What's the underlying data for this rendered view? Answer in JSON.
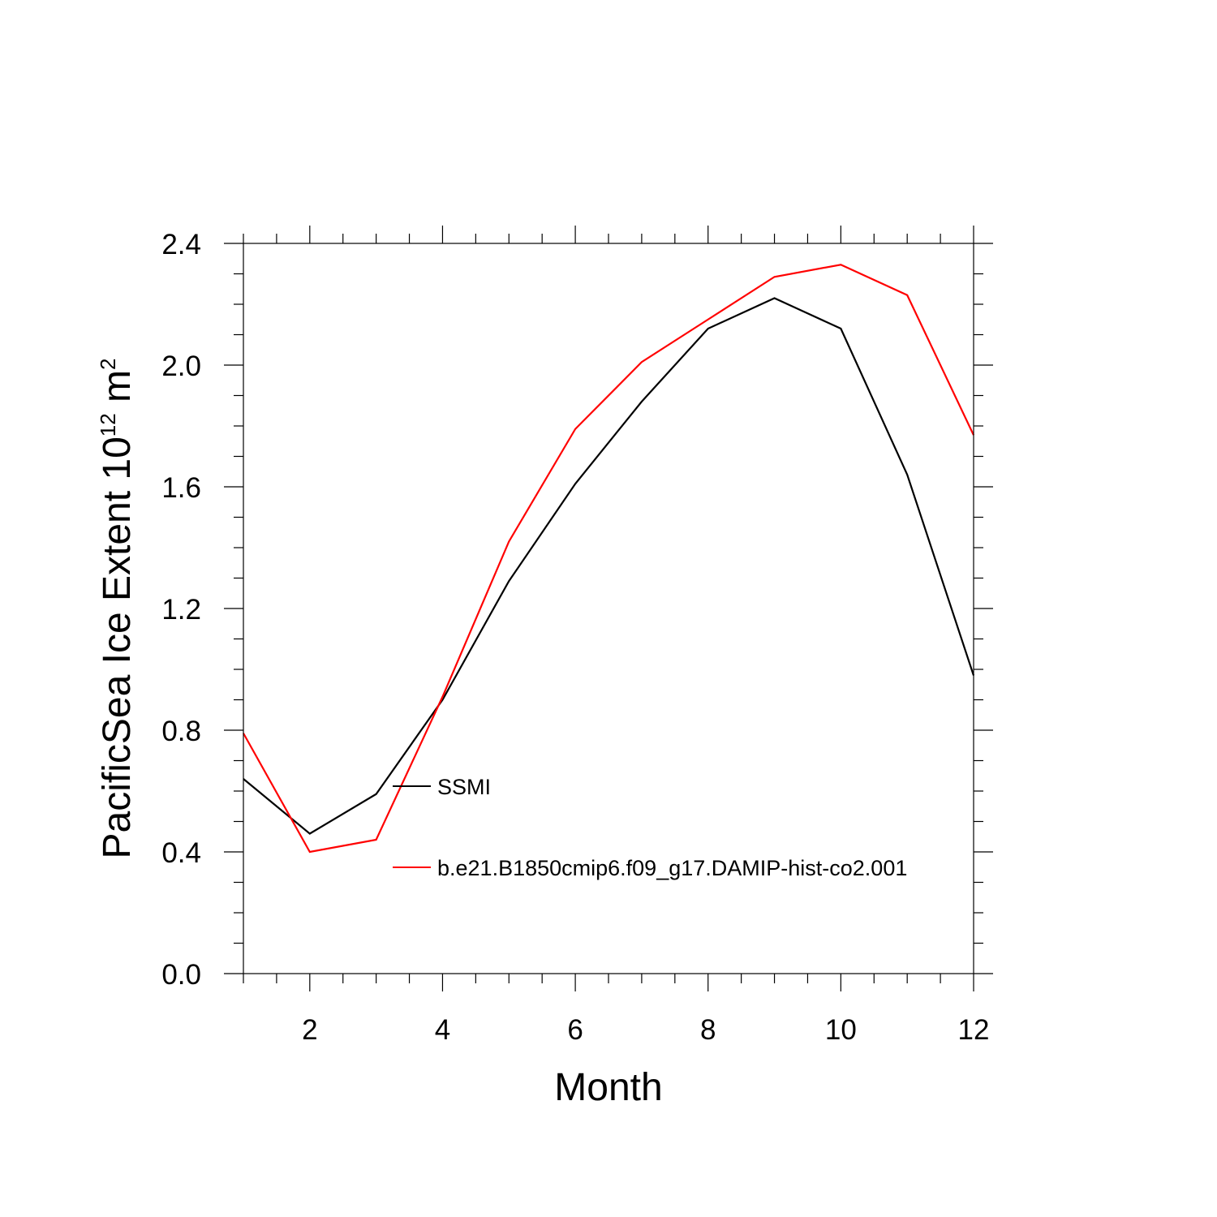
{
  "chart_data": {
    "type": "line",
    "xlabel": "Month",
    "ylabel": {
      "text": "PacificSea Ice Extent 10",
      "superscript": "12",
      "unit": " m",
      "unit_superscript": "2"
    },
    "xlim": [
      1,
      12
    ],
    "ylim": [
      0.0,
      2.4
    ],
    "x_ticks": [
      2,
      4,
      6,
      8,
      10,
      12
    ],
    "x_tick_labels": [
      "2",
      "4",
      "6",
      "8",
      "10",
      "12"
    ],
    "y_ticks": [
      0.0,
      0.4,
      0.8,
      1.2,
      1.6,
      2.0,
      2.4
    ],
    "y_tick_labels": [
      "0.0",
      "0.4",
      "0.8",
      "1.2",
      "1.6",
      "2.0",
      "2.4"
    ],
    "grid": false,
    "legend_placement": "inside-center-left",
    "x": [
      1,
      2,
      3,
      4,
      5,
      6,
      7,
      8,
      9,
      10,
      11,
      12
    ],
    "series": [
      {
        "name": "SSMI",
        "color": "#000000",
        "values": [
          0.64,
          0.46,
          0.59,
          0.9,
          1.29,
          1.61,
          1.88,
          2.12,
          2.22,
          2.12,
          1.64,
          0.98
        ]
      },
      {
        "name": "b.e21.B1850cmip6.f09_g17.DAMIP-hist-co2.001",
        "color": "#ff0000",
        "values": [
          0.79,
          0.4,
          0.44,
          0.91,
          1.42,
          1.79,
          2.01,
          2.15,
          2.29,
          2.33,
          2.23,
          1.77
        ]
      }
    ]
  }
}
